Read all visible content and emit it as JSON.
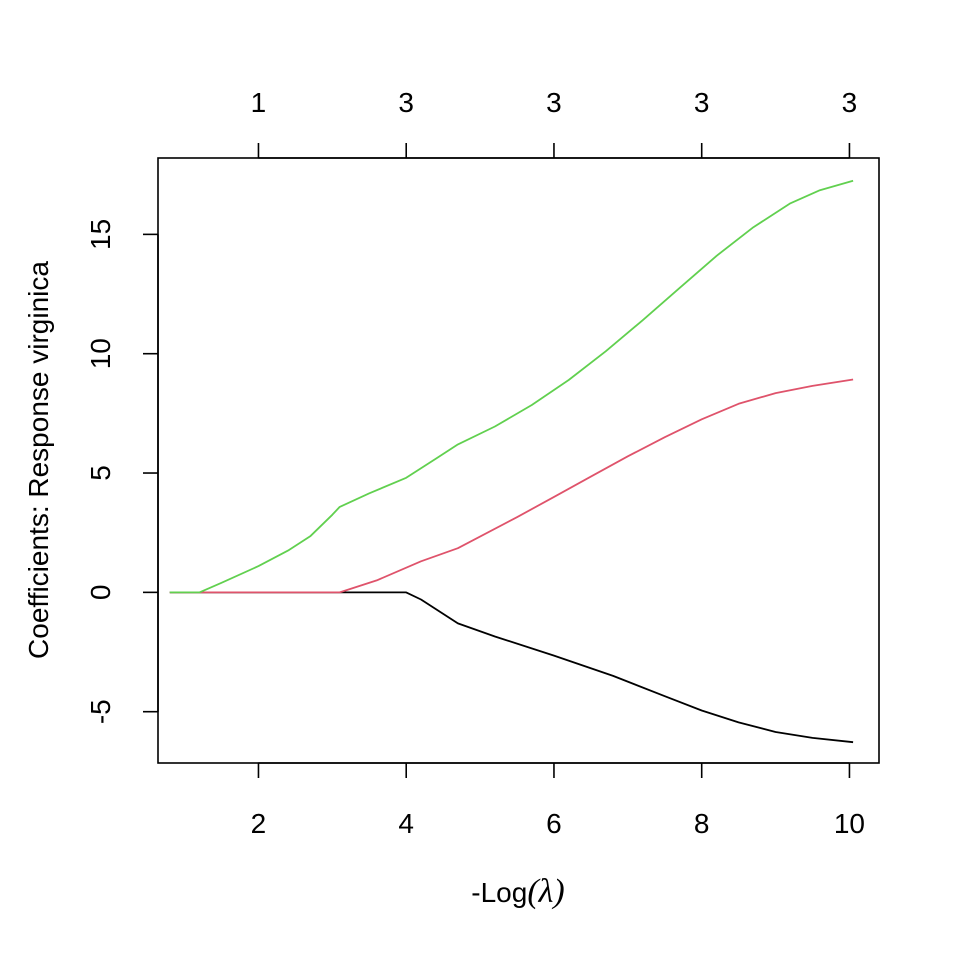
{
  "chart_data": {
    "type": "line",
    "title": "",
    "xlabel_prefix": "-Log",
    "xlabel_symbol": "(λ)",
    "ylabel": "Coefficients: Response virginica",
    "xlim": [
      0.64,
      10.4
    ],
    "ylim": [
      -7.15,
      18.2
    ],
    "x_ticks": [
      "2",
      "4",
      "6",
      "8",
      "10"
    ],
    "x_tick_values": [
      2,
      4,
      6,
      8,
      10
    ],
    "y_ticks": [
      "-5",
      "0",
      "5",
      "10",
      "15"
    ],
    "y_tick_values": [
      -5,
      0,
      5,
      10,
      15
    ],
    "top_axis": {
      "tick_values": [
        2,
        4,
        6,
        8,
        10
      ],
      "labels": [
        "1",
        "3",
        "3",
        "3",
        "3"
      ]
    },
    "grid": false,
    "legend": "none",
    "series": [
      {
        "color": "#000000",
        "x": [
          0.8,
          2.0,
          3.0,
          4.0,
          4.2,
          4.7,
          5.2,
          6.0,
          6.8,
          7.5,
          8.0,
          8.5,
          9.0,
          9.5,
          10.05
        ],
        "y": [
          0,
          0,
          0,
          0,
          -0.3,
          -1.3,
          -1.85,
          -2.65,
          -3.5,
          -4.35,
          -4.95,
          -5.45,
          -5.85,
          -6.1,
          -6.28
        ]
      },
      {
        "color": "#DF536B",
        "x": [
          0.8,
          2.0,
          3.1,
          3.6,
          4.2,
          4.7,
          5.5,
          6.0,
          6.5,
          7.0,
          7.5,
          8.0,
          8.5,
          9.0,
          9.5,
          10.05
        ],
        "y": [
          0,
          0,
          0,
          0.5,
          1.3,
          1.85,
          3.15,
          4.0,
          4.85,
          5.7,
          6.5,
          7.25,
          7.9,
          8.35,
          8.65,
          8.92
        ]
      },
      {
        "color": "#61D04F",
        "x": [
          0.8,
          1.2,
          1.5,
          2.0,
          2.4,
          2.7,
          3.0,
          3.1,
          3.5,
          4.0,
          4.4,
          4.7,
          5.2,
          5.7,
          6.2,
          6.7,
          7.2,
          7.7,
          8.2,
          8.7,
          9.2,
          9.6,
          10.05
        ],
        "y": [
          0,
          0,
          0.4,
          1.1,
          1.75,
          2.35,
          3.25,
          3.58,
          4.15,
          4.8,
          5.6,
          6.2,
          6.95,
          7.85,
          8.9,
          10.1,
          11.4,
          12.75,
          14.1,
          15.3,
          16.3,
          16.85,
          17.25
        ]
      }
    ]
  }
}
